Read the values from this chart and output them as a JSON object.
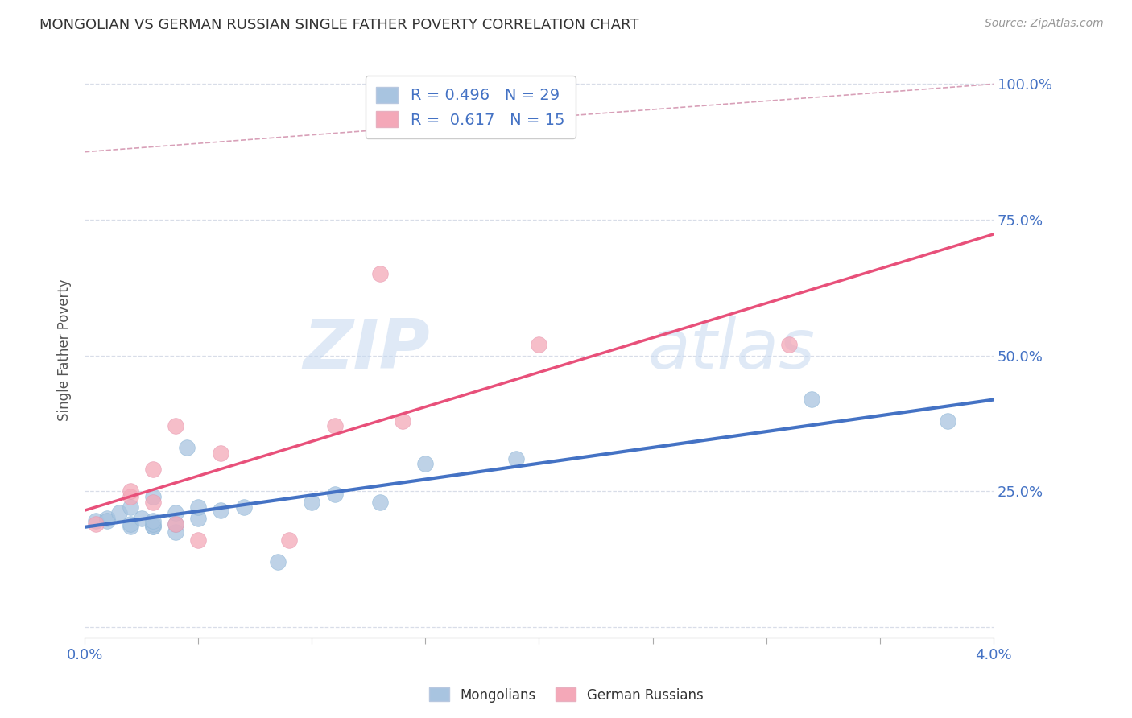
{
  "title": "MONGOLIAN VS GERMAN RUSSIAN SINGLE FATHER POVERTY CORRELATION CHART",
  "source": "Source: ZipAtlas.com",
  "ylabel": "Single Father Poverty",
  "x_min": 0.0,
  "x_max": 0.04,
  "y_min": -0.02,
  "y_max": 1.04,
  "ytick_vals": [
    0.0,
    0.25,
    0.5,
    0.75,
    1.0
  ],
  "ytick_labels": [
    "",
    "25.0%",
    "50.0%",
    "75.0%",
    "100.0%"
  ],
  "mongolian_R": 0.496,
  "mongolian_N": 29,
  "germanrussian_R": 0.617,
  "germanrussian_N": 15,
  "mongolian_color": "#a8c4e0",
  "germanrussian_color": "#f4a8b8",
  "mongolian_line_color": "#4472c4",
  "germanrussian_line_color": "#e8507a",
  "diagonal_color": "#d8a0b0",
  "background_color": "#ffffff",
  "watermark_zip": "ZIP",
  "watermark_atlas": "atlas",
  "grid_color": "#d8dde8",
  "mongolian_x": [
    0.0005,
    0.001,
    0.001,
    0.0015,
    0.002,
    0.002,
    0.002,
    0.0025,
    0.003,
    0.003,
    0.003,
    0.003,
    0.003,
    0.004,
    0.004,
    0.004,
    0.0045,
    0.005,
    0.005,
    0.006,
    0.007,
    0.0085,
    0.01,
    0.011,
    0.013,
    0.015,
    0.019,
    0.032,
    0.038
  ],
  "mongolian_y": [
    0.195,
    0.2,
    0.195,
    0.21,
    0.185,
    0.19,
    0.22,
    0.2,
    0.185,
    0.185,
    0.19,
    0.195,
    0.24,
    0.175,
    0.19,
    0.21,
    0.33,
    0.2,
    0.22,
    0.215,
    0.22,
    0.12,
    0.23,
    0.245,
    0.23,
    0.3,
    0.31,
    0.42,
    0.38
  ],
  "germanrussian_x": [
    0.0005,
    0.002,
    0.002,
    0.003,
    0.003,
    0.004,
    0.004,
    0.005,
    0.006,
    0.009,
    0.011,
    0.013,
    0.014,
    0.02,
    0.031
  ],
  "germanrussian_y": [
    0.19,
    0.24,
    0.25,
    0.23,
    0.29,
    0.19,
    0.37,
    0.16,
    0.32,
    0.16,
    0.37,
    0.65,
    0.38,
    0.52,
    0.52
  ],
  "xtick_vals": [
    0.0,
    0.005,
    0.01,
    0.015,
    0.02,
    0.025,
    0.03,
    0.035,
    0.04
  ],
  "xtick_show": [
    true,
    false,
    false,
    false,
    false,
    false,
    false,
    false,
    true
  ]
}
